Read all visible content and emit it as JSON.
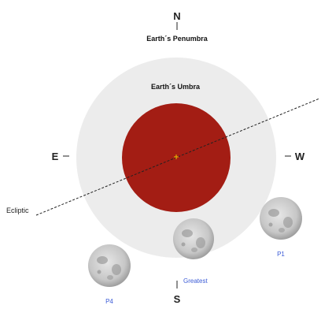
{
  "compass": {
    "north": "N",
    "south": "S",
    "east": "E",
    "west": "W"
  },
  "labels": {
    "penumbra": "Earth´s Penumbra",
    "umbra": "Earth´s Umbra",
    "ecliptic": "Ecliptic",
    "greatest": "Greatest",
    "p1": "P1",
    "p4": "P4"
  },
  "colors": {
    "penumbra": "#ececec",
    "umbra": "#a31d14",
    "center_mark": "#f5c400",
    "label_blue": "#3b5bd6",
    "moon": "#c8c8c8"
  }
}
